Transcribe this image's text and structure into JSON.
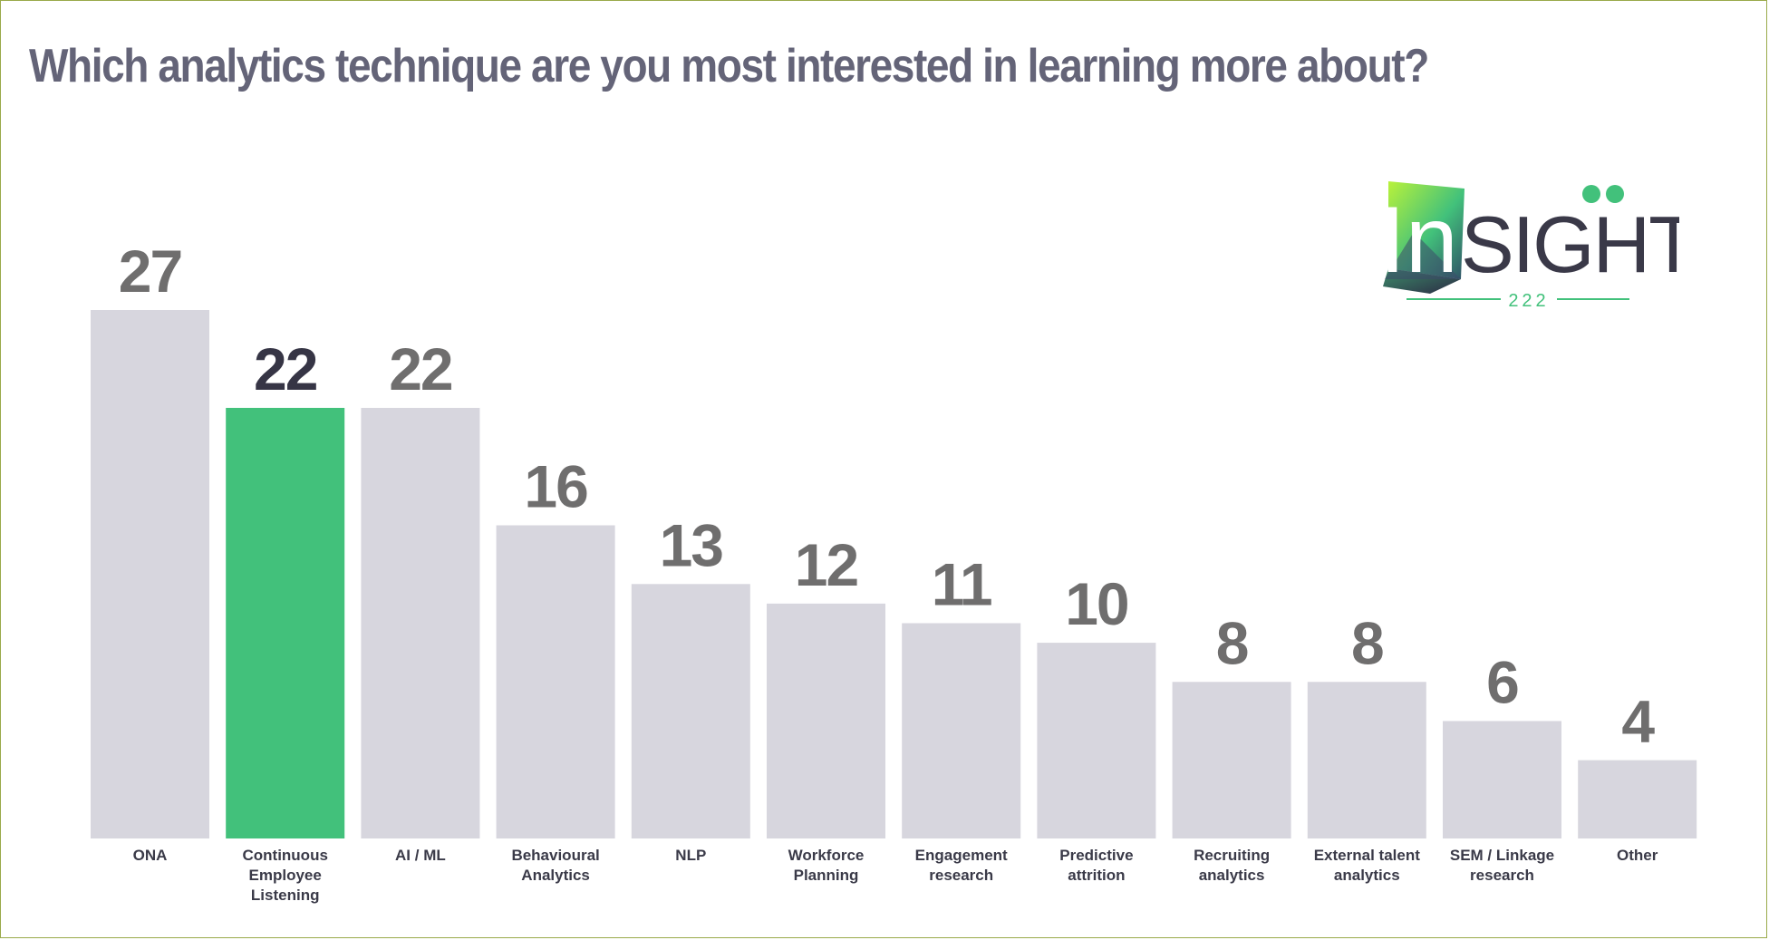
{
  "title": "Which analytics technique are you most interested in learning more about?",
  "logo": {
    "text_in": "In",
    "text_sight": "SIGHT",
    "subtext": "222"
  },
  "colors": {
    "bar_default": "#d7d6de",
    "bar_highlight": "#42c17b",
    "value_default": "#6f6e6e",
    "value_highlight": "#363545",
    "title": "#646478"
  },
  "chart_data": {
    "type": "bar",
    "title": "Which analytics technique are you most interested in learning more about?",
    "xlabel": "",
    "ylabel": "",
    "categories": [
      "ONA",
      "Continuous Employee Listening",
      "AI / ML",
      "Behavioural Analytics",
      "NLP",
      "Workforce Planning",
      "Engagement research",
      "Predictive attrition",
      "Recruiting analytics",
      "External talent analytics",
      "SEM / Linkage research",
      "Other"
    ],
    "category_lines": [
      [
        "ONA"
      ],
      [
        "Continuous",
        "Employee",
        "Listening"
      ],
      [
        "AI / ML"
      ],
      [
        "Behavioural",
        "Analytics"
      ],
      [
        "NLP"
      ],
      [
        "Workforce",
        "Planning"
      ],
      [
        "Engagement",
        "research"
      ],
      [
        "Predictive",
        "attrition"
      ],
      [
        "Recruiting",
        "analytics"
      ],
      [
        "External talent",
        "analytics"
      ],
      [
        "SEM / Linkage",
        "research"
      ],
      [
        "Other"
      ]
    ],
    "values": [
      27,
      22,
      22,
      16,
      13,
      12,
      11,
      10,
      8,
      8,
      6,
      4
    ],
    "highlight_index": 1,
    "ylim": [
      0,
      27
    ],
    "grid": false,
    "legend": "none"
  }
}
